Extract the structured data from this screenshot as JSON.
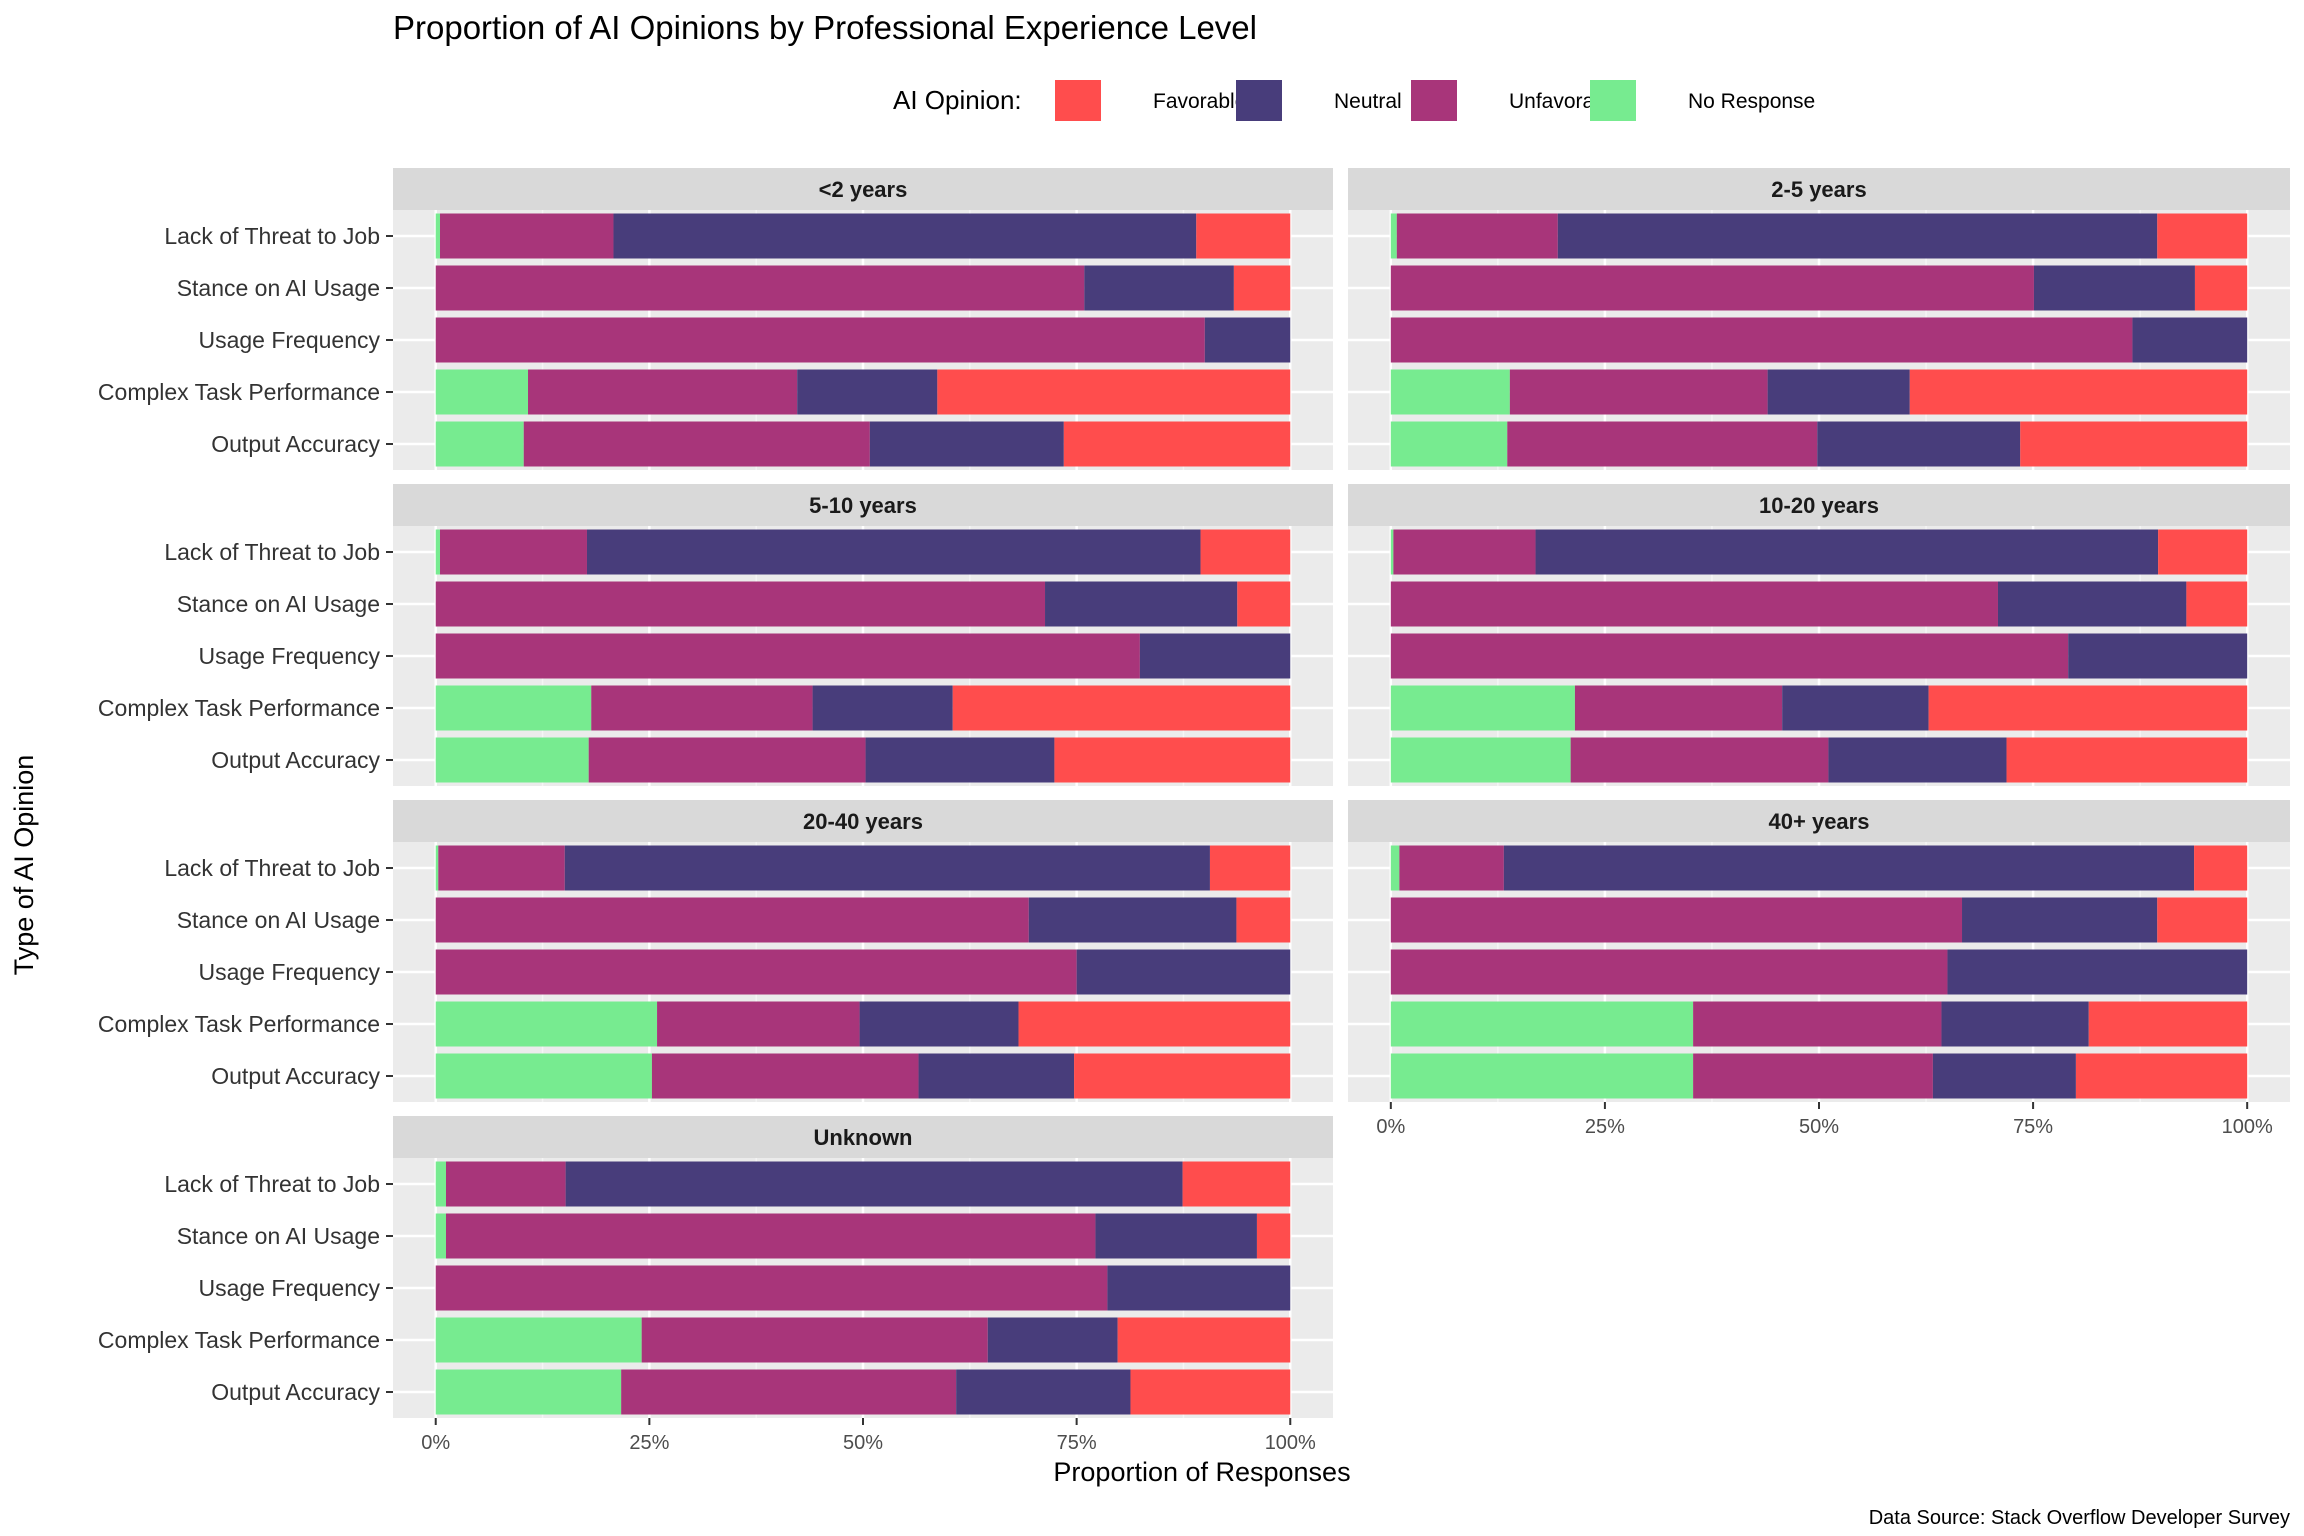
{
  "chart_data": {
    "type": "bar",
    "orientation": "horizontal",
    "stacked": "proportion",
    "title": "Proportion of AI Opinions by Professional Experience Level",
    "xlabel": "Proportion of Responses",
    "ylabel": "Type of AI Opinion",
    "caption": "Data Source: Stack Overflow Developer Survey",
    "xlim": [
      0,
      1
    ],
    "x_ticks": [
      "0%",
      "25%",
      "50%",
      "75%",
      "100%"
    ],
    "grid": true,
    "legend": {
      "title": "AI Opinion:",
      "position": "top",
      "items": [
        {
          "name": "Favorable",
          "color": "#FF4D4D"
        },
        {
          "name": "Neutral",
          "color": "#483D7B"
        },
        {
          "name": "Unfavorable",
          "color": "#A8357A"
        },
        {
          "name": "No Response",
          "color": "#77EB90"
        }
      ]
    },
    "categories": [
      "Lack of Threat to Job",
      "Stance on AI Usage",
      "Usage Frequency",
      "Complex Task Performance",
      "Output Accuracy"
    ],
    "stack_order": [
      "No Response",
      "Unfavorable",
      "Neutral",
      "Favorable"
    ],
    "panels": [
      {
        "label": "<2 years",
        "series": [
          {
            "name": "No Response",
            "values": [
              0.005,
              0.0,
              0.0,
              0.108,
              0.103
            ]
          },
          {
            "name": "Unfavorable",
            "values": [
              0.203,
              0.759,
              0.9,
              0.315,
              0.405
            ]
          },
          {
            "name": "Neutral",
            "values": [
              0.682,
              0.175,
              0.1,
              0.164,
              0.227
            ]
          },
          {
            "name": "Favorable",
            "values": [
              0.11,
              0.066,
              0.0,
              0.413,
              0.265
            ]
          }
        ]
      },
      {
        "label": "2-5 years",
        "series": [
          {
            "name": "No Response",
            "values": [
              0.007,
              0.0,
              0.0,
              0.139,
              0.136
            ]
          },
          {
            "name": "Unfavorable",
            "values": [
              0.188,
              0.751,
              0.866,
              0.301,
              0.362
            ]
          },
          {
            "name": "Neutral",
            "values": [
              0.7,
              0.188,
              0.134,
              0.166,
              0.237
            ]
          },
          {
            "name": "Favorable",
            "values": [
              0.105,
              0.061,
              0.0,
              0.394,
              0.265
            ]
          }
        ]
      },
      {
        "label": "5-10 years",
        "series": [
          {
            "name": "No Response",
            "values": [
              0.005,
              0.0,
              0.0,
              0.182,
              0.179
            ]
          },
          {
            "name": "Unfavorable",
            "values": [
              0.172,
              0.713,
              0.824,
              0.259,
              0.324
            ]
          },
          {
            "name": "Neutral",
            "values": [
              0.718,
              0.225,
              0.176,
              0.164,
              0.221
            ]
          },
          {
            "name": "Favorable",
            "values": [
              0.105,
              0.062,
              0.0,
              0.395,
              0.276
            ]
          }
        ]
      },
      {
        "label": "10-20 years",
        "series": [
          {
            "name": "No Response",
            "values": [
              0.003,
              0.0,
              0.0,
              0.215,
              0.21
            ]
          },
          {
            "name": "Unfavorable",
            "values": [
              0.166,
              0.709,
              0.791,
              0.242,
              0.301
            ]
          },
          {
            "name": "Neutral",
            "values": [
              0.727,
              0.22,
              0.209,
              0.171,
              0.208
            ]
          },
          {
            "name": "Favorable",
            "values": [
              0.104,
              0.071,
              0.0,
              0.372,
              0.281
            ]
          }
        ]
      },
      {
        "label": "20-40 years",
        "series": [
          {
            "name": "No Response",
            "values": [
              0.003,
              0.0,
              0.0,
              0.259,
              0.253
            ]
          },
          {
            "name": "Unfavorable",
            "values": [
              0.148,
              0.694,
              0.75,
              0.237,
              0.312
            ]
          },
          {
            "name": "Neutral",
            "values": [
              0.755,
              0.243,
              0.25,
              0.186,
              0.182
            ]
          },
          {
            "name": "Favorable",
            "values": [
              0.094,
              0.063,
              0.0,
              0.318,
              0.253
            ]
          }
        ]
      },
      {
        "label": "40+ years",
        "series": [
          {
            "name": "No Response",
            "values": [
              0.01,
              0.0,
              0.0,
              0.353,
              0.353
            ]
          },
          {
            "name": "Unfavorable",
            "values": [
              0.122,
              0.667,
              0.65,
              0.29,
              0.28
            ]
          },
          {
            "name": "Neutral",
            "values": [
              0.806,
              0.228,
              0.35,
              0.172,
              0.167
            ]
          },
          {
            "name": "Favorable",
            "values": [
              0.062,
              0.105,
              0.0,
              0.185,
              0.2
            ]
          }
        ]
      },
      {
        "label": "Unknown",
        "series": [
          {
            "name": "No Response",
            "values": [
              0.012,
              0.012,
              0.0,
              0.241,
              0.217
            ]
          },
          {
            "name": "Unfavorable",
            "values": [
              0.14,
              0.76,
              0.786,
              0.405,
              0.392
            ]
          },
          {
            "name": "Neutral",
            "values": [
              0.722,
              0.189,
              0.214,
              0.152,
              0.204
            ]
          },
          {
            "name": "Favorable",
            "values": [
              0.126,
              0.039,
              0.0,
              0.202,
              0.187
            ]
          }
        ]
      }
    ]
  }
}
